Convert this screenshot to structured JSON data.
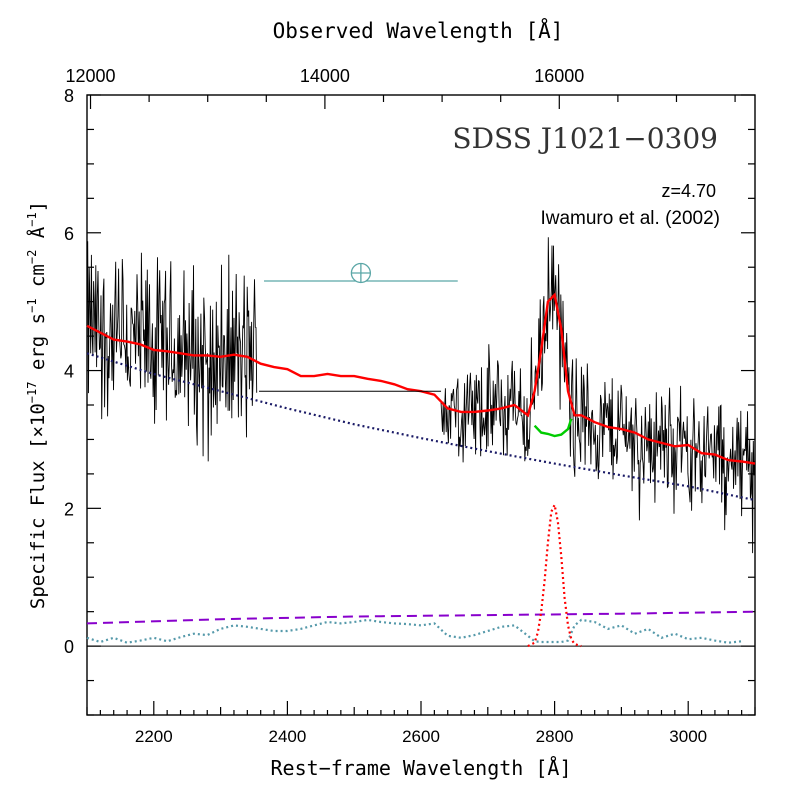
{
  "chart_data": {
    "type": "line",
    "title": "SDSS J1021−0309",
    "annotations": {
      "redshift": "z=4.70",
      "reference": "Iwamuro et al. (2002)"
    },
    "xlabel": "Rest−frame Wavelength [Å]",
    "ylabel_parts": {
      "main": "Specific Flux [×10",
      "exp1": "−17",
      "part2": " erg s",
      "exp2": "−1",
      "part3": " cm",
      "exp3": "−2",
      "part4": " Å",
      "exp4": "−1",
      "close": "]"
    },
    "top_xlabel": "Observed Wavelength [Å]",
    "xlim": [
      2100,
      3100
    ],
    "ylim": [
      -1,
      8
    ],
    "xticks": [
      2200,
      2400,
      2600,
      2800,
      3000
    ],
    "xtick_labels": [
      "2200",
      "2400",
      "2600",
      "2800",
      "3000"
    ],
    "yticks": [
      0,
      2,
      4,
      6,
      8
    ],
    "ytick_labels": [
      "0",
      "2",
      "4",
      "6",
      "8"
    ],
    "top_ticks": [
      12000,
      14000,
      16000
    ],
    "top_tick_labels": [
      "12000",
      "14000",
      "16000"
    ],
    "redshift_z": 4.7,
    "colors": {
      "spectrum": "#000000",
      "model": "#ff0000",
      "continuum": "#1a1a66",
      "feii": "#5599aa",
      "emission_line": "#ff0000",
      "balmer": "#8800cc",
      "green_fill": "#00cc00",
      "atmos": "#5aa6a6"
    },
    "series": [
      {
        "name": "observed spectrum",
        "style": "solid-noisy",
        "segments": [
          [
            2100,
            2355,
            4.2
          ],
          [
            2630,
            3100,
            3.2
          ]
        ]
      },
      {
        "name": "model fit",
        "style": "solid",
        "x": [
          2100,
          2120,
          2140,
          2160,
          2180,
          2200,
          2220,
          2240,
          2260,
          2280,
          2300,
          2320,
          2340,
          2360,
          2380,
          2400,
          2420,
          2440,
          2460,
          2480,
          2500,
          2520,
          2540,
          2560,
          2580,
          2600,
          2620,
          2640,
          2660,
          2680,
          2700,
          2720,
          2740,
          2760,
          2770,
          2780,
          2790,
          2800,
          2810,
          2820,
          2830,
          2840,
          2860,
          2880,
          2900,
          2920,
          2940,
          2960,
          2980,
          3000,
          3020,
          3040,
          3060,
          3080,
          3100
        ],
        "y": [
          4.65,
          4.55,
          4.45,
          4.42,
          4.38,
          4.3,
          4.28,
          4.25,
          4.22,
          4.22,
          4.2,
          4.23,
          4.2,
          4.1,
          4.05,
          4.02,
          3.92,
          3.92,
          3.95,
          3.92,
          3.92,
          3.88,
          3.85,
          3.8,
          3.73,
          3.7,
          3.65,
          3.45,
          3.4,
          3.4,
          3.42,
          3.45,
          3.5,
          3.35,
          3.7,
          4.3,
          5.0,
          5.1,
          4.6,
          3.7,
          3.35,
          3.35,
          3.25,
          3.18,
          3.15,
          3.1,
          3.0,
          2.95,
          2.9,
          2.92,
          2.8,
          2.78,
          2.7,
          2.68,
          2.65
        ]
      },
      {
        "name": "power-law continuum",
        "style": "dotted",
        "x": [
          2100,
          2200,
          2300,
          2400,
          2500,
          2600,
          2700,
          2800,
          2900,
          3000,
          3100
        ],
        "y": [
          4.25,
          3.95,
          3.7,
          3.45,
          3.22,
          3.02,
          2.83,
          2.65,
          2.48,
          2.32,
          2.12
        ]
      },
      {
        "name": "continuum under line",
        "style": "solid",
        "x": [
          2770,
          2780,
          2790,
          2800,
          2810,
          2820,
          2825
        ],
        "y": [
          3.2,
          3.1,
          3.08,
          3.05,
          3.07,
          3.15,
          3.3
        ]
      },
      {
        "name": "Mg II emission line",
        "style": "dotted",
        "x": [
          2760,
          2770,
          2775,
          2780,
          2785,
          2790,
          2795,
          2800,
          2805,
          2810,
          2815,
          2820,
          2825,
          2830,
          2840
        ],
        "y": [
          0.0,
          0.05,
          0.2,
          0.5,
          0.95,
          1.5,
          1.95,
          2.05,
          1.8,
          1.3,
          0.7,
          0.3,
          0.1,
          0.03,
          0.0
        ]
      },
      {
        "name": "Balmer continuum",
        "style": "dashed",
        "x": [
          2100,
          2300,
          2500,
          2700,
          2900,
          3100
        ],
        "y": [
          0.33,
          0.39,
          0.43,
          0.45,
          0.47,
          0.5
        ]
      },
      {
        "name": "Fe II template",
        "style": "dotted",
        "x": [
          2100,
          2120,
          2140,
          2160,
          2180,
          2200,
          2220,
          2240,
          2260,
          2280,
          2300,
          2320,
          2340,
          2360,
          2380,
          2400,
          2420,
          2440,
          2460,
          2480,
          2500,
          2520,
          2540,
          2560,
          2580,
          2600,
          2620,
          2640,
          2660,
          2680,
          2700,
          2720,
          2740,
          2760,
          2770,
          2780,
          2790,
          2800,
          2810,
          2820,
          2830,
          2840,
          2860,
          2880,
          2900,
          2920,
          2940,
          2960,
          2980,
          3000,
          3020,
          3040,
          3060,
          3080
        ],
        "y": [
          0.12,
          0.06,
          0.12,
          0.05,
          0.08,
          0.12,
          0.07,
          0.13,
          0.18,
          0.16,
          0.25,
          0.3,
          0.28,
          0.25,
          0.22,
          0.22,
          0.25,
          0.3,
          0.35,
          0.33,
          0.35,
          0.38,
          0.35,
          0.33,
          0.32,
          0.3,
          0.33,
          0.15,
          0.12,
          0.16,
          0.22,
          0.28,
          0.3,
          0.15,
          0.07,
          0.06,
          0.06,
          0.06,
          0.06,
          0.08,
          0.3,
          0.38,
          0.35,
          0.25,
          0.3,
          0.18,
          0.25,
          0.12,
          0.18,
          0.1,
          0.12,
          0.08,
          0.05,
          0.07
        ]
      },
      {
        "name": "zero line",
        "style": "solid",
        "x": [
          2100,
          3100
        ],
        "y": [
          0,
          0
        ]
      }
    ],
    "atmospheric_gap": {
      "x_range": [
        2365,
        2655
      ],
      "y": 5.3,
      "symbol_x": 2510,
      "flux_level": 3.7
    }
  }
}
